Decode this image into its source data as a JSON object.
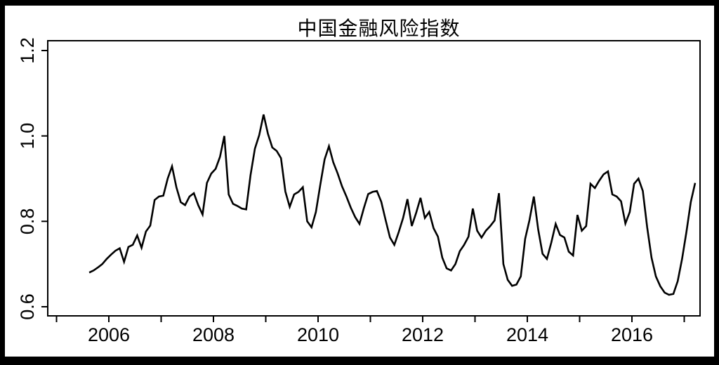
{
  "chart_data": {
    "type": "line",
    "title": "中国金融风险指数",
    "xlabel": "",
    "ylabel": "",
    "ylim": [
      0.6,
      1.2
    ],
    "xlim": [
      2004.83,
      2017.3
    ],
    "grid": false,
    "legend": "none",
    "line_color": "#000000",
    "background_color": "#ffffff",
    "frame_color": "#000000",
    "y_axis": {
      "tick_labels": [
        "0.6",
        "0.8",
        "1.0",
        "1.2"
      ],
      "tick_values": [
        0.6,
        0.8,
        1.0,
        1.2
      ]
    },
    "x_axis": {
      "tick_years": [
        2005,
        2006,
        2007,
        2008,
        2009,
        2010,
        2011,
        2012,
        2013,
        2014,
        2015,
        2016,
        2017
      ],
      "labeled_years": [
        2006,
        2008,
        2010,
        2012,
        2014,
        2016
      ],
      "tick_labels": [
        "2006",
        "2008",
        "2010",
        "2012",
        "2014",
        "2016"
      ]
    },
    "series": [
      {
        "name": "中国金融风险指数",
        "dates": [
          "2005-08",
          "2005-09",
          "2005-10",
          "2005-11",
          "2005-12",
          "2006-01",
          "2006-02",
          "2006-03",
          "2006-04",
          "2006-05",
          "2006-06",
          "2006-07",
          "2006-08",
          "2006-09",
          "2006-10",
          "2006-11",
          "2006-12",
          "2007-01",
          "2007-02",
          "2007-03",
          "2007-04",
          "2007-05",
          "2007-06",
          "2007-07",
          "2007-08",
          "2007-09",
          "2007-10",
          "2007-11",
          "2007-12",
          "2008-01",
          "2008-02",
          "2008-03",
          "2008-04",
          "2008-05",
          "2008-06",
          "2008-07",
          "2008-08",
          "2008-09",
          "2008-10",
          "2008-11",
          "2008-12",
          "2009-01",
          "2009-02",
          "2009-03",
          "2009-04",
          "2009-05",
          "2009-06",
          "2009-07",
          "2009-08",
          "2009-09",
          "2009-10",
          "2009-11",
          "2009-12",
          "2010-01",
          "2010-02",
          "2010-03",
          "2010-04",
          "2010-05",
          "2010-06",
          "2010-07",
          "2010-08",
          "2010-09",
          "2010-10",
          "2010-11",
          "2010-12",
          "2011-01",
          "2011-02",
          "2011-03",
          "2011-04",
          "2011-05",
          "2011-06",
          "2011-07",
          "2011-08",
          "2011-09",
          "2011-10",
          "2011-11",
          "2011-12",
          "2012-01",
          "2012-02",
          "2012-03",
          "2012-04",
          "2012-05",
          "2012-06",
          "2012-07",
          "2012-08",
          "2012-09",
          "2012-10",
          "2012-11",
          "2012-12",
          "2013-01",
          "2013-02",
          "2013-03",
          "2013-04",
          "2013-05",
          "2013-06",
          "2013-07",
          "2013-08",
          "2013-09",
          "2013-10",
          "2013-11",
          "2013-12",
          "2014-01",
          "2014-02",
          "2014-03",
          "2014-04",
          "2014-05",
          "2014-06",
          "2014-07",
          "2014-08",
          "2014-09",
          "2014-10",
          "2014-11",
          "2014-12",
          "2015-01",
          "2015-02",
          "2015-03",
          "2015-04",
          "2015-05",
          "2015-06",
          "2015-07",
          "2015-08",
          "2015-09",
          "2015-10",
          "2015-11",
          "2015-12",
          "2016-01",
          "2016-02",
          "2016-03",
          "2016-04",
          "2016-05",
          "2016-06",
          "2016-07",
          "2016-08",
          "2016-09",
          "2016-10",
          "2016-11",
          "2016-12",
          "2017-01",
          "2017-02",
          "2017-03"
        ],
        "values": [
          0.68,
          0.685,
          0.692,
          0.7,
          0.712,
          0.722,
          0.731,
          0.737,
          0.705,
          0.74,
          0.745,
          0.767,
          0.738,
          0.776,
          0.79,
          0.85,
          0.858,
          0.86,
          0.9,
          0.929,
          0.88,
          0.845,
          0.838,
          0.858,
          0.866,
          0.838,
          0.816,
          0.89,
          0.912,
          0.923,
          0.951,
          1.0,
          0.863,
          0.841,
          0.836,
          0.83,
          0.828,
          0.908,
          0.97,
          1.002,
          1.05,
          1.005,
          0.973,
          0.965,
          0.948,
          0.87,
          0.834,
          0.863,
          0.869,
          0.88,
          0.8,
          0.786,
          0.822,
          0.885,
          0.945,
          0.976,
          0.938,
          0.912,
          0.882,
          0.858,
          0.832,
          0.81,
          0.794,
          0.831,
          0.864,
          0.869,
          0.871,
          0.846,
          0.803,
          0.762,
          0.745,
          0.775,
          0.808,
          0.852,
          0.789,
          0.82,
          0.855,
          0.808,
          0.822,
          0.784,
          0.764,
          0.715,
          0.69,
          0.685,
          0.7,
          0.73,
          0.745,
          0.764,
          0.83,
          0.778,
          0.762,
          0.778,
          0.789,
          0.802,
          0.866,
          0.7,
          0.663,
          0.649,
          0.652,
          0.671,
          0.759,
          0.803,
          0.858,
          0.781,
          0.724,
          0.712,
          0.75,
          0.794,
          0.768,
          0.762,
          0.729,
          0.72,
          0.815,
          0.778,
          0.789,
          0.888,
          0.878,
          0.895,
          0.91,
          0.917,
          0.863,
          0.858,
          0.847,
          0.795,
          0.822,
          0.888,
          0.9,
          0.871,
          0.786,
          0.715,
          0.671,
          0.648,
          0.633,
          0.628,
          0.63,
          0.66,
          0.712,
          0.775,
          0.845,
          0.89
        ]
      }
    ]
  }
}
